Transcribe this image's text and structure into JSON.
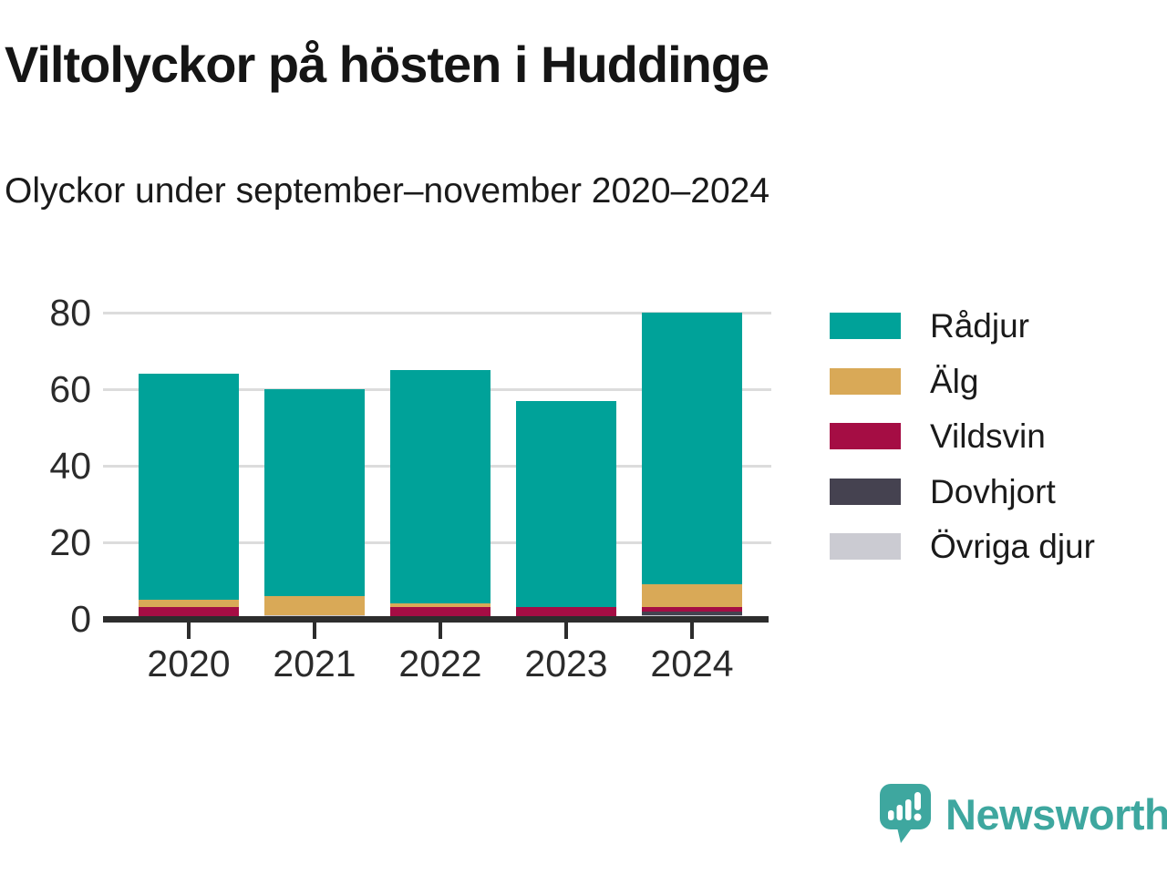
{
  "header": {
    "title": "Viltolyckor på hösten i Huddinge",
    "subtitle": "Olyckor under september–november 2020–2024"
  },
  "chart_data": {
    "type": "bar",
    "stacked": true,
    "title": "Viltolyckor på hösten i Huddinge",
    "subtitle": "Olyckor under september–november 2020–2024",
    "categories": [
      "2020",
      "2021",
      "2022",
      "2023",
      "2024"
    ],
    "series": [
      {
        "name": "Övriga djur",
        "color": "#cbcbd2",
        "values": [
          0,
          1,
          0,
          0,
          1
        ]
      },
      {
        "name": "Dovhjort",
        "color": "#454250",
        "values": [
          0,
          0,
          0,
          0,
          1
        ]
      },
      {
        "name": "Vildsvin",
        "color": "#a50d44",
        "values": [
          3,
          0,
          3,
          3,
          1
        ]
      },
      {
        "name": "Älg",
        "color": "#d9a957",
        "values": [
          2,
          5,
          1,
          0,
          6
        ]
      },
      {
        "name": "Rådjur",
        "color": "#00a299",
        "values": [
          59,
          54,
          61,
          54,
          71
        ]
      }
    ],
    "totals": [
      64,
      60,
      65,
      57,
      80
    ],
    "xlabel": "",
    "ylabel": "",
    "yticks": [
      0,
      20,
      40,
      60,
      80
    ],
    "ylim": [
      0,
      84
    ],
    "grid": true,
    "legend_position": "right",
    "legend_order": [
      "Rådjur",
      "Älg",
      "Vildsvin",
      "Dovhjort",
      "Övriga djur"
    ]
  },
  "footer": {
    "brand": "Newsworthy",
    "brand_color": "#3ea79f"
  }
}
